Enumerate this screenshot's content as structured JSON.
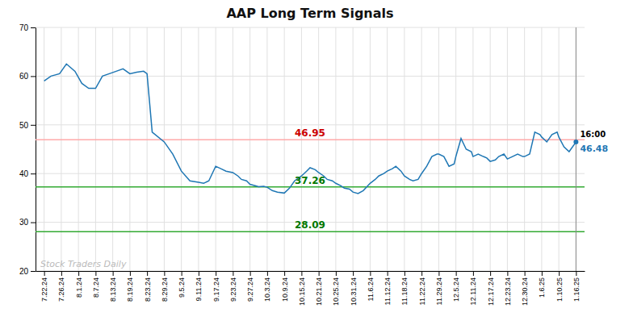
{
  "chart_data": {
    "type": "line",
    "title": "AAP Long Term Signals",
    "x": [
      0,
      0.4,
      0.9,
      1.3,
      1.8,
      2.2,
      2.6,
      3.0,
      3.4,
      3.8,
      4.2,
      4.6,
      5.0,
      5.4,
      5.8,
      6.0,
      6.3,
      7.0,
      7.5,
      8.0,
      8.5,
      9.0,
      9.3,
      9.6,
      10.0,
      10.3,
      10.6,
      11.0,
      11.3,
      11.5,
      11.8,
      12.0,
      12.3,
      12.5,
      12.8,
      13.0,
      13.3,
      13.6,
      14.0,
      14.3,
      14.6,
      15.0,
      15.3,
      15.5,
      15.8,
      16.0,
      16.3,
      16.5,
      16.8,
      17.0,
      17.3,
      17.5,
      17.8,
      18.0,
      18.3,
      18.6,
      19.0,
      19.3,
      19.5,
      19.8,
      20.0,
      20.3,
      20.5,
      20.8,
      21.0,
      21.3,
      21.5,
      21.8,
      22.0,
      22.3,
      22.6,
      22.9,
      23.0,
      23.3,
      23.6,
      23.9,
      24.0,
      24.3,
      24.6,
      24.9,
      25.0,
      25.3,
      25.6,
      25.8,
      26.0,
      26.3,
      26.5,
      26.8,
      27.0,
      27.3,
      27.6,
      27.9,
      28.0,
      28.3,
      28.6,
      28.9,
      29.0,
      29.3,
      29.6,
      29.9,
      30.0,
      30.3,
      30.6,
      31.0
    ],
    "values": [
      59.0,
      60.0,
      60.5,
      62.5,
      61.0,
      58.5,
      57.5,
      57.5,
      60.0,
      60.5,
      61.0,
      61.5,
      60.5,
      60.8,
      61.0,
      60.5,
      48.5,
      46.5,
      44.0,
      40.5,
      38.5,
      38.2,
      38.0,
      38.5,
      41.5,
      41.0,
      40.5,
      40.2,
      39.5,
      38.8,
      38.5,
      37.8,
      37.5,
      37.3,
      37.4,
      37.2,
      36.5,
      36.2,
      36.0,
      37.0,
      38.5,
      39.5,
      40.5,
      41.2,
      40.8,
      40.2,
      39.5,
      38.8,
      38.5,
      38.0,
      37.5,
      37.0,
      36.8,
      36.2,
      35.9,
      36.5,
      38.0,
      38.8,
      39.5,
      40.0,
      40.5,
      41.0,
      41.5,
      40.5,
      39.5,
      38.8,
      38.5,
      38.8,
      40.0,
      41.5,
      43.5,
      44.0,
      44.0,
      43.5,
      41.5,
      42.0,
      43.5,
      47.2,
      45.0,
      44.5,
      43.5,
      44.0,
      43.5,
      43.2,
      42.5,
      42.8,
      43.5,
      44.0,
      43.0,
      43.5,
      44.0,
      43.5,
      43.5,
      44.0,
      48.5,
      48.0,
      47.5,
      46.5,
      48.0,
      48.5,
      47.5,
      45.5,
      44.5,
      46.48
    ],
    "xlim": [
      -0.5,
      31.5
    ],
    "xticks": [
      {
        "value": 0,
        "label": "7.22.24"
      },
      {
        "value": 1,
        "label": "7.26.24"
      },
      {
        "value": 2,
        "label": "8.1.24"
      },
      {
        "value": 3,
        "label": "8.7.24"
      },
      {
        "value": 4,
        "label": "8.13.24"
      },
      {
        "value": 5,
        "label": "8.19.24"
      },
      {
        "value": 6,
        "label": "8.23.24"
      },
      {
        "value": 7,
        "label": "8.29.24"
      },
      {
        "value": 8,
        "label": "9.5.24"
      },
      {
        "value": 9,
        "label": "9.11.24"
      },
      {
        "value": 10,
        "label": "9.17.24"
      },
      {
        "value": 11,
        "label": "9.23.24"
      },
      {
        "value": 12,
        "label": "9.27.24"
      },
      {
        "value": 13,
        "label": "10.3.24"
      },
      {
        "value": 14,
        "label": "10.9.24"
      },
      {
        "value": 15,
        "label": "10.15.24"
      },
      {
        "value": 16,
        "label": "10.21.24"
      },
      {
        "value": 17,
        "label": "10.25.24"
      },
      {
        "value": 18,
        "label": "10.31.24"
      },
      {
        "value": 19,
        "label": "11.6.24"
      },
      {
        "value": 20,
        "label": "11.12.24"
      },
      {
        "value": 21,
        "label": "11.18.24"
      },
      {
        "value": 22,
        "label": "11.22.24"
      },
      {
        "value": 23,
        "label": "11.29.24"
      },
      {
        "value": 24,
        "label": "12.5.24"
      },
      {
        "value": 25,
        "label": "12.11.24"
      },
      {
        "value": 26,
        "label": "12.17.24"
      },
      {
        "value": 27,
        "label": "12.23.24"
      },
      {
        "value": 28,
        "label": "12.30.24"
      },
      {
        "value": 29,
        "label": "1.6.25"
      },
      {
        "value": 30,
        "label": "1.10.25"
      },
      {
        "value": 31,
        "label": "1.16.25"
      }
    ],
    "ylim": [
      20,
      70
    ],
    "yticks": [
      20,
      30,
      40,
      50,
      60,
      70
    ],
    "grid": true,
    "reference_lines": [
      {
        "value": 46.95,
        "label": "46.95",
        "color": "#ffaaaa",
        "label_color": "#cc0000"
      },
      {
        "value": 37.26,
        "label": "37.26",
        "color": "#33aa33",
        "label_color": "#007700"
      },
      {
        "value": 28.09,
        "label": "28.09",
        "color": "#33aa33",
        "label_color": "#007700"
      }
    ],
    "vertical_line": 31,
    "last_point": {
      "x": 31,
      "y": 46.48,
      "label": "46.48",
      "time": "16:00"
    },
    "watermark": "Stock Traders Daily"
  }
}
